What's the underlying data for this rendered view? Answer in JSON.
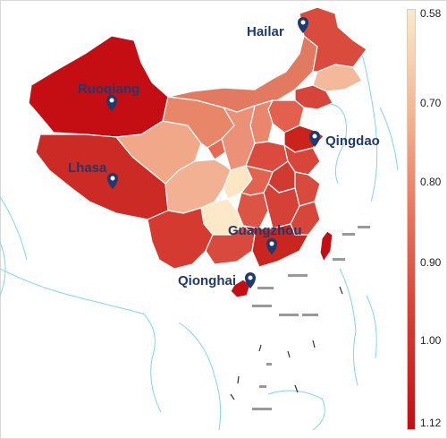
{
  "legend": {
    "ticks": [
      "0.58",
      "0.70",
      "0.80",
      "0.90",
      "1.00",
      "1.12"
    ],
    "gradient": [
      "#fde9c8",
      "#f6b48e",
      "#ea7059",
      "#d73a2f",
      "#c40e14"
    ]
  },
  "markers": [
    {
      "name": "Hailar"
    },
    {
      "name": "Ruoqiang"
    },
    {
      "name": "Qingdao"
    },
    {
      "name": "Lhasa"
    },
    {
      "name": "Guangzhou"
    },
    {
      "name": "Qionghai"
    }
  ],
  "colors": {
    "marker": "#1f3a6e",
    "coastline": "#7fd8e8",
    "border": "#ffffff"
  }
}
